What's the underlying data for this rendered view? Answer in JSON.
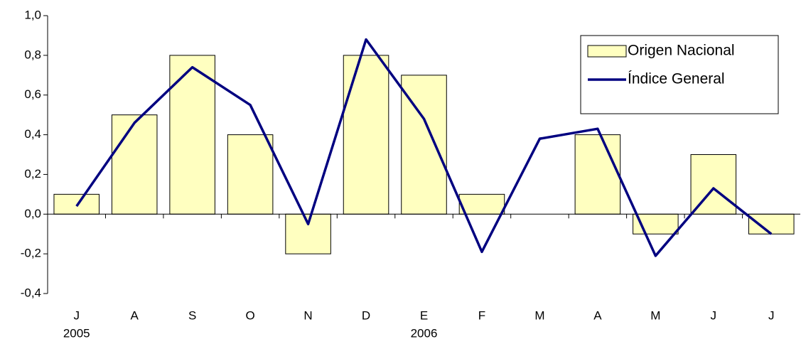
{
  "chart_data": {
    "type": "bar-line",
    "categories": [
      "J",
      "A",
      "S",
      "O",
      "N",
      "D",
      "E",
      "F",
      "M",
      "A",
      "M",
      "J",
      "J"
    ],
    "year_labels": [
      "2005",
      null,
      null,
      null,
      null,
      null,
      "2006",
      null,
      null,
      null,
      null,
      null,
      null
    ],
    "series": [
      {
        "name": "Origen Nacional",
        "type": "bar",
        "color": "#ffffc0",
        "values": [
          0.1,
          0.5,
          0.8,
          0.4,
          -0.2,
          0.8,
          0.7,
          0.1,
          0.0,
          0.4,
          -0.1,
          0.3,
          -0.1
        ]
      },
      {
        "name": "Índice General",
        "type": "line",
        "color": "#000080",
        "values": [
          0.04,
          0.46,
          0.74,
          0.55,
          -0.05,
          0.88,
          0.48,
          -0.19,
          0.38,
          0.43,
          -0.21,
          0.13,
          -0.1
        ]
      }
    ],
    "ylim": [
      -0.4,
      1.0
    ],
    "yticks": [
      {
        "value": -0.4,
        "label": "-0,4"
      },
      {
        "value": -0.2,
        "label": "-0,2"
      },
      {
        "value": 0,
        "label": "0,0"
      },
      {
        "value": 0.2,
        "label": "0,2"
      },
      {
        "value": 0.4,
        "label": "0,4"
      },
      {
        "value": 0.6,
        "label": "0,6"
      },
      {
        "value": 0.8,
        "label": "0,8"
      },
      {
        "value": 1.0,
        "label": "1,0"
      }
    ],
    "legend": "upper right"
  }
}
